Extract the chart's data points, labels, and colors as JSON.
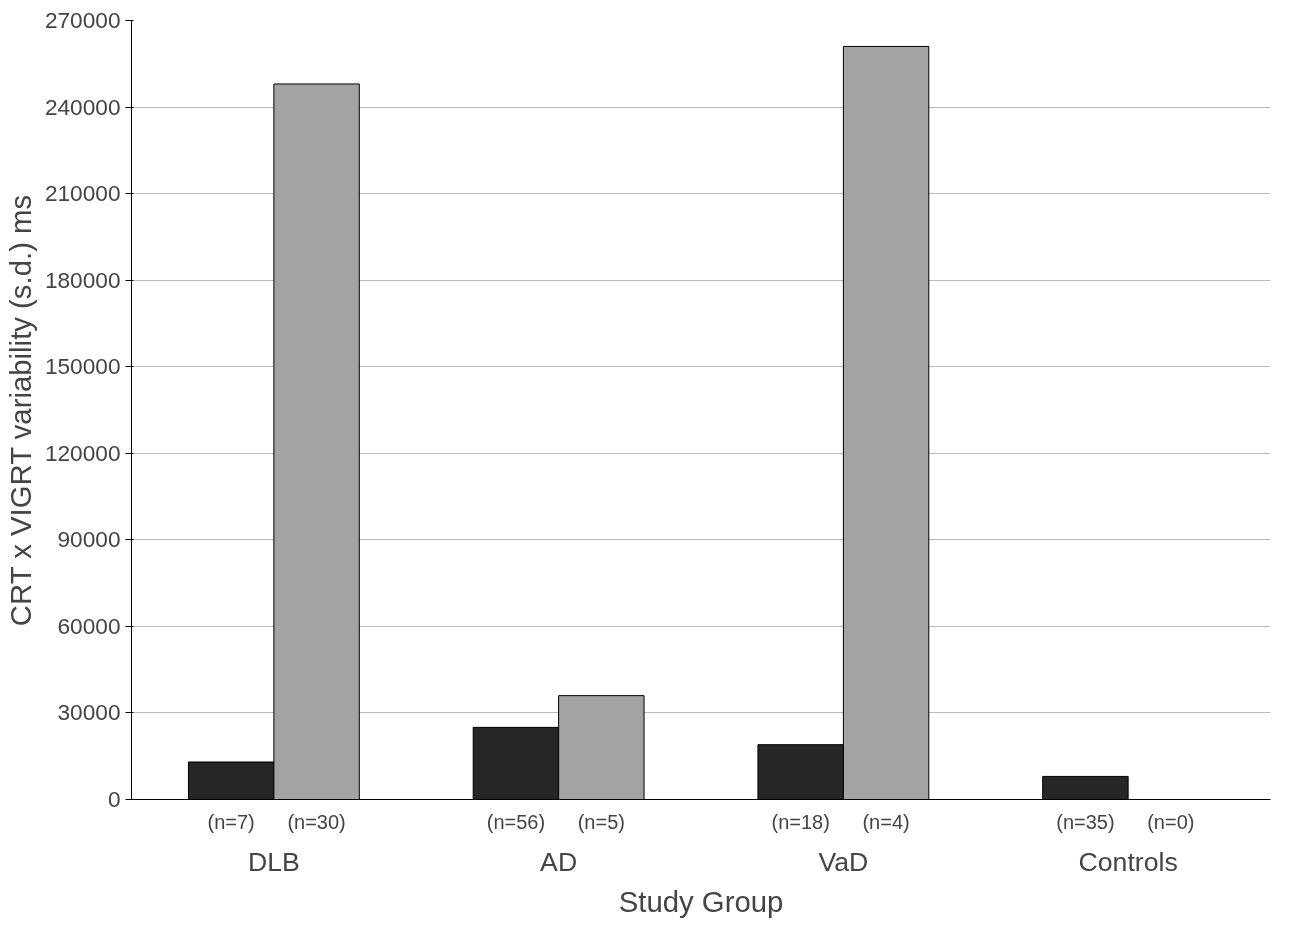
{
  "chart_data": {
    "type": "bar",
    "xlabel": "Study Group",
    "ylabel": "CRT x VIGRT variability (s.d.) ms",
    "categories": [
      "DLB",
      "AD",
      "VaD",
      "Controls"
    ],
    "series": [
      {
        "color": "#262626",
        "values": [
          13000,
          25000,
          19000,
          8000
        ]
      },
      {
        "color": "#a3a3a3",
        "values": [
          248000,
          36000,
          261000,
          null
        ]
      }
    ],
    "annotations": [
      "(n=7)",
      "(n=30)",
      "(n=56)",
      "(n=5)",
      "(n=18)",
      "(n=4)",
      "(n=35)",
      "(n=0)"
    ],
    "ylim": [
      0,
      270000
    ],
    "yticks": [
      0,
      30000,
      60000,
      90000,
      120000,
      150000,
      180000,
      210000,
      240000,
      270000
    ],
    "grid": "y"
  }
}
